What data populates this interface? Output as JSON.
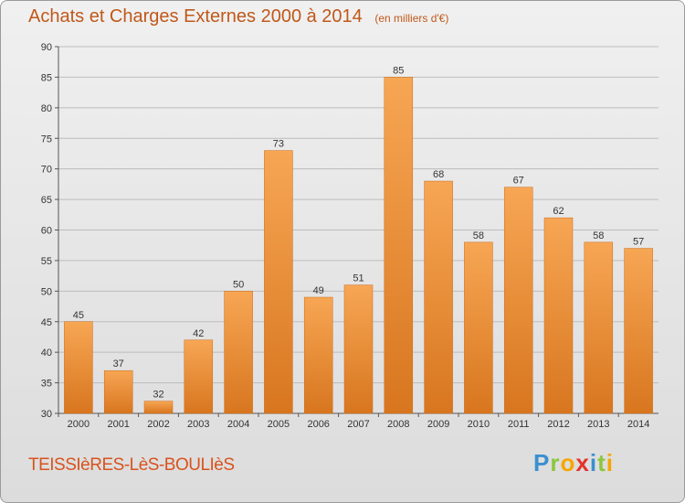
{
  "header": {
    "title": "Achats et Charges Externes 2000 à 2014",
    "subtitle": "(en milliers d'€)"
  },
  "footer": {
    "commune": "TEISSIèRES-LèS-BOULIèS",
    "logo_letters": [
      {
        "char": "P",
        "color": "#3a8fd0"
      },
      {
        "char": "r",
        "color": "#8cc63f"
      },
      {
        "char": "o",
        "color": "#f7a600"
      },
      {
        "char": "x",
        "color": "#e4322b"
      },
      {
        "char": "i",
        "color": "#3a8fd0"
      },
      {
        "char": "t",
        "color": "#8cc63f"
      },
      {
        "char": "i",
        "color": "#f7a600"
      }
    ]
  },
  "colors": {
    "bar_light": "#f7a654",
    "bar_dark": "#d8761f",
    "grid": "#bdbdbd",
    "title": "#c0581a"
  },
  "chart_data": {
    "type": "bar",
    "title": "Achats et Charges Externes 2000 à 2014",
    "subtitle": "(en milliers d'€)",
    "categories": [
      "2000",
      "2001",
      "2002",
      "2003",
      "2004",
      "2005",
      "2006",
      "2007",
      "2008",
      "2009",
      "2010",
      "2011",
      "2012",
      "2013",
      "2014"
    ],
    "values": [
      45,
      37,
      32,
      42,
      50,
      73,
      49,
      51,
      85,
      68,
      58,
      67,
      62,
      58,
      57
    ],
    "ylim": [
      30,
      90
    ],
    "yticks": [
      30,
      35,
      40,
      45,
      50,
      55,
      60,
      65,
      70,
      75,
      80,
      85,
      90
    ],
    "grid": true,
    "xlabel": "",
    "ylabel": ""
  }
}
